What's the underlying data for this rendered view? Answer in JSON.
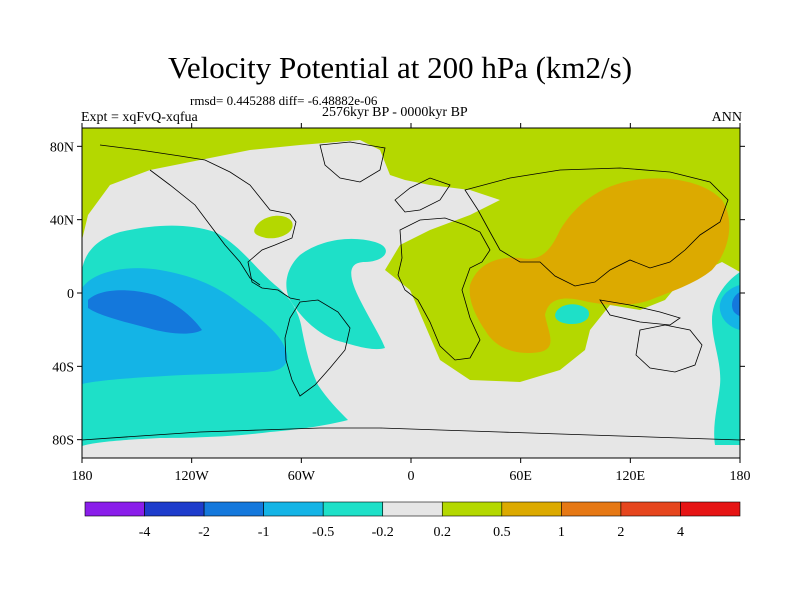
{
  "title": "Velocity Potential at 200 hPa (km2/s)",
  "stats": "rmsd= 0.445288 diff= -6.48882e-06",
  "experiment": "Expt = xqFvQ-xqfua",
  "period": "2576kyr BP - 0000kyr BP",
  "season": "ANN",
  "axes": {
    "lon_ticks": [
      "180",
      "120W",
      "60W",
      "0",
      "60E",
      "120E",
      "180"
    ],
    "lat_ticks": [
      "80N",
      "40N",
      "0",
      "40S",
      "80S"
    ]
  },
  "colorbar": {
    "labels": [
      "-4",
      "-2",
      "-1",
      "-0.5",
      "-0.2",
      "0.2",
      "0.5",
      "1",
      "2",
      "4"
    ],
    "colors": [
      "#8a1eea",
      "#1e3ccc",
      "#1478dc",
      "#14b4e6",
      "#1ee0c8",
      "#e6e6e6",
      "#b4d800",
      "#dcaa00",
      "#e67814",
      "#e6461e",
      "#e61414"
    ]
  }
}
